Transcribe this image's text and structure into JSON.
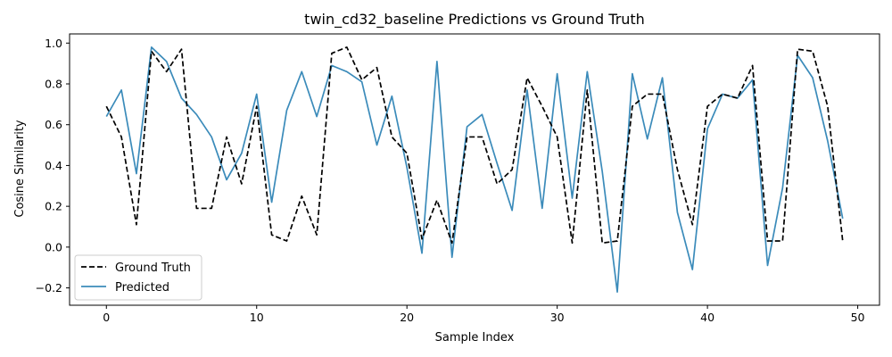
{
  "chart_data": {
    "type": "line",
    "title": "twin_cd32_baseline Predictions vs Ground Truth",
    "xlabel": "Sample Index",
    "ylabel": "Cosine Similarity",
    "xlim": [
      -2.45,
      51.45
    ],
    "ylim": [
      -0.285,
      1.045
    ],
    "xticks": [
      0,
      10,
      20,
      30,
      40,
      50
    ],
    "yticks": [
      -0.2,
      0.0,
      0.2,
      0.4,
      0.6,
      0.8,
      1.0
    ],
    "xtick_labels": [
      "0",
      "10",
      "20",
      "30",
      "40",
      "50"
    ],
    "ytick_labels": [
      "−0.2",
      "0.0",
      "0.2",
      "0.4",
      "0.6",
      "0.8",
      "1.0"
    ],
    "grid": false,
    "legend_position": "lower-left",
    "x": [
      0,
      1,
      2,
      3,
      4,
      5,
      6,
      7,
      8,
      9,
      10,
      11,
      12,
      13,
      14,
      15,
      16,
      17,
      18,
      19,
      20,
      21,
      22,
      23,
      24,
      25,
      26,
      27,
      28,
      29,
      30,
      31,
      32,
      33,
      34,
      35,
      36,
      37,
      38,
      39,
      40,
      41,
      42,
      43,
      44,
      45,
      46,
      47,
      48,
      49
    ],
    "series": [
      {
        "name": "Ground Truth",
        "color": "#000000",
        "style": "dashed",
        "values": [
          0.69,
          0.54,
          0.11,
          0.96,
          0.86,
          0.97,
          0.19,
          0.19,
          0.54,
          0.31,
          0.69,
          0.06,
          0.03,
          0.25,
          0.06,
          0.95,
          0.98,
          0.82,
          0.88,
          0.54,
          0.46,
          0.04,
          0.23,
          0.02,
          0.54,
          0.54,
          0.31,
          0.38,
          0.83,
          0.69,
          0.54,
          0.02,
          0.77,
          0.02,
          0.03,
          0.69,
          0.75,
          0.75,
          0.38,
          0.11,
          0.69,
          0.75,
          0.73,
          0.89,
          0.03,
          0.03,
          0.97,
          0.96,
          0.69,
          0.03
        ]
      },
      {
        "name": "Predicted",
        "color": "#3b8bba",
        "style": "solid",
        "values": [
          0.64,
          0.77,
          0.36,
          0.98,
          0.91,
          0.73,
          0.65,
          0.54,
          0.33,
          0.46,
          0.75,
          0.22,
          0.67,
          0.86,
          0.64,
          0.89,
          0.86,
          0.81,
          0.5,
          0.74,
          0.39,
          -0.03,
          0.91,
          -0.05,
          0.59,
          0.65,
          0.41,
          0.18,
          0.77,
          0.19,
          0.85,
          0.24,
          0.86,
          0.37,
          -0.22,
          0.85,
          0.53,
          0.83,
          0.17,
          -0.11,
          0.58,
          0.75,
          0.73,
          0.82,
          -0.09,
          0.29,
          0.94,
          0.83,
          0.52,
          0.14
        ]
      }
    ]
  }
}
